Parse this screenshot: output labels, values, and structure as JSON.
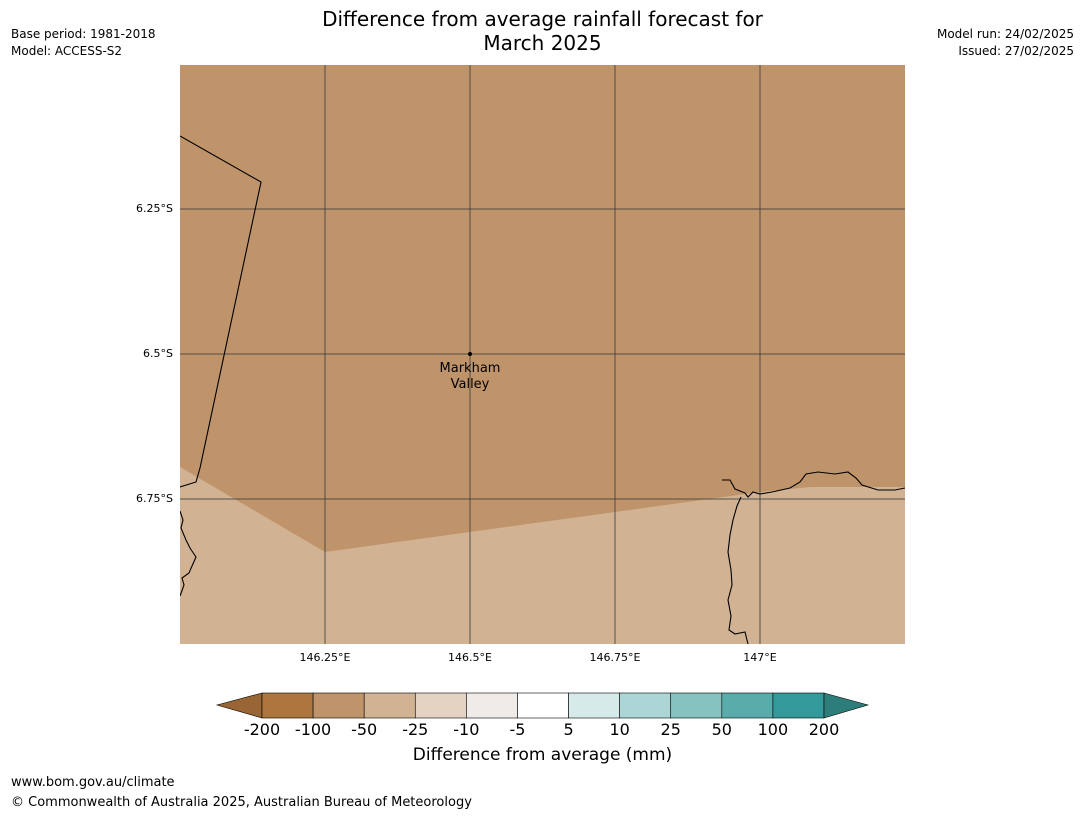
{
  "header": {
    "title_line1": "Difference from average rainfall forecast for",
    "title_line2": "March 2025",
    "base_period": "Base period: 1981-2018",
    "model": "Model: ACCESS-S2",
    "model_run": "Model run: 24/02/2025",
    "issued": "Issued: 27/02/2025"
  },
  "map": {
    "lat_labels": [
      "6.25°S",
      "6.5°S",
      "6.75°S"
    ],
    "lon_labels": [
      "146.25°E",
      "146.5°E",
      "146.75°E",
      "147°E"
    ],
    "place": {
      "line1": "Markham",
      "line2": "Valley"
    },
    "colors": {
      "north_zone": "#c0946a",
      "south_zone": "#d1b394"
    }
  },
  "legend": {
    "title": "Difference from average (mm)",
    "ticks": [
      "-200",
      "-100",
      "-50",
      "-25",
      "-10",
      "-5",
      "5",
      "10",
      "25",
      "50",
      "100",
      "200"
    ],
    "colors": [
      "#9a6535",
      "#ad763f",
      "#c0946a",
      "#d1b394",
      "#e4d2c2",
      "#efebe8",
      "#ffffff",
      "#d6eaea",
      "#acd6d6",
      "#86c2bf",
      "#5aacab",
      "#34999a",
      "#2d7d7a"
    ]
  },
  "footer": {
    "url": "www.bom.gov.au/climate",
    "copyright": "© Commonwealth of Australia 2025, Australian Bureau of Meteorology"
  }
}
